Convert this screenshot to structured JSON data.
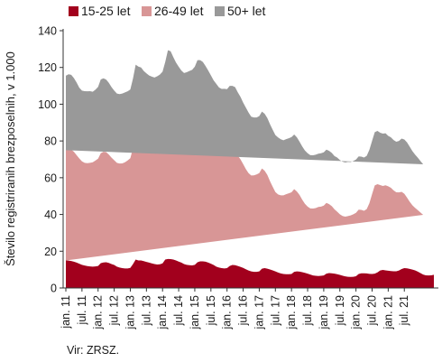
{
  "chart_data": {
    "type": "area",
    "stacked": true,
    "ylabel": "Število registriranih brezposelnih, v 1.000",
    "ylim": [
      0,
      140
    ],
    "yticks": [
      0,
      20,
      40,
      60,
      80,
      100,
      120,
      140
    ],
    "x_tick_labels": [
      "jan. 11",
      "jul. 11",
      "jan. 12",
      "jul. 12",
      "jan. 13",
      "jul. 13",
      "jan. 14",
      "jul. 14",
      "jan. 15",
      "jul. 15",
      "jan. 16",
      "jul. 16",
      "jan. 17",
      "jul. 17",
      "jan. 18",
      "jul. 18",
      "jan. 19",
      "jul. 19",
      "jan. 20",
      "jul. 20",
      "jan. 21",
      "jul. 21"
    ],
    "legend_position": "top-left",
    "series": [
      {
        "name": "15-25 let",
        "color": "#a2001d",
        "values": [
          15.0,
          14.9,
          14.7,
          14.3,
          13.8,
          13.2,
          12.6,
          12.2,
          11.9,
          11.7,
          11.6,
          11.7,
          12.0,
          13.5,
          13.9,
          14.0,
          13.6,
          13.0,
          12.5,
          11.6,
          11.1,
          10.8,
          10.6,
          10.6,
          10.9,
          13.0,
          15.5,
          15.0,
          15.0,
          14.6,
          14.2,
          13.8,
          13.4,
          13.0,
          12.8,
          12.9,
          13.4,
          15.5,
          15.8,
          15.7,
          15.5,
          15.0,
          14.4,
          13.8,
          13.0,
          12.6,
          12.4,
          12.3,
          12.6,
          14.0,
          14.5,
          14.5,
          14.3,
          13.8,
          13.2,
          12.5,
          11.6,
          11.1,
          10.8,
          10.6,
          10.8,
          12.0,
          12.5,
          12.4,
          12.0,
          11.5,
          10.9,
          10.2,
          9.5,
          9.0,
          8.8,
          8.8,
          9.0,
          10.5,
          10.8,
          10.5,
          10.1,
          9.6,
          9.0,
          8.4,
          7.9,
          7.6,
          7.5,
          7.5,
          7.6,
          8.8,
          9.0,
          8.9,
          8.6,
          8.2,
          7.8,
          7.3,
          6.8,
          6.6,
          6.5,
          6.6,
          6.8,
          7.8,
          8.1,
          8.0,
          7.8,
          7.5,
          7.1,
          6.7,
          6.3,
          6.1,
          6.0,
          6.1,
          6.4,
          7.6,
          8.0,
          8.0,
          7.9,
          7.7,
          7.6,
          7.8,
          8.5,
          9.5,
          9.8,
          9.6,
          9.4,
          9.2,
          9.1,
          9.1,
          9.5,
          10.3,
          10.8,
          10.7,
          10.4,
          10.0,
          9.6,
          8.9,
          8.1,
          7.3,
          6.9,
          6.8,
          6.9,
          7.2
        ]
      },
      {
        "name": "26-49 let",
        "color": "#d89696",
        "values": [
          60.0,
          60.8,
          60.6,
          59.8,
          58.5,
          57.3,
          56.3,
          55.9,
          56.0,
          56.4,
          56.8,
          57.6,
          58.4,
          59.8,
          60.2,
          59.9,
          59.0,
          57.9,
          57.0,
          56.5,
          56.6,
          57.0,
          57.8,
          58.8,
          59.7,
          63.0,
          67.5,
          67.0,
          66.0,
          64.5,
          63.5,
          62.8,
          62.6,
          63.0,
          63.9,
          64.7,
          65.8,
          69.0,
          75.0,
          74.5,
          71.6,
          69.2,
          67.5,
          66.0,
          66.0,
          66.8,
          67.8,
          68.7,
          70.0,
          72.5,
          72.0,
          71.0,
          69.0,
          67.0,
          65.5,
          64.0,
          63.0,
          62.5,
          62.5,
          62.6,
          62.4,
          63.0,
          62.5,
          62.0,
          60.0,
          58.5,
          56.5,
          54.5,
          53.0,
          52.2,
          52.5,
          53.0,
          53.5,
          54.5,
          53.0,
          51.0,
          48.0,
          45.5,
          43.2,
          42.5,
          42.5,
          42.8,
          43.5,
          44.0,
          44.5,
          45.0,
          43.5,
          41.7,
          39.4,
          37.6,
          36.5,
          36.0,
          36.4,
          36.9,
          37.6,
          37.7,
          38.0,
          38.5,
          37.5,
          36.5,
          35.0,
          34.0,
          33.0,
          32.5,
          32.5,
          33.0,
          33.5,
          34.0,
          34.5,
          35.0,
          34.5,
          34.0,
          35.0,
          38.5,
          43.5,
          48.0,
          48.0,
          46.5,
          45.7,
          46.3,
          45.9,
          45.3,
          44.0,
          43.0,
          42.5,
          42.0,
          40.5,
          38.5,
          36.5,
          35.0,
          34.0,
          33.5,
          33.0,
          32.5
        ]
      },
      {
        "name": "50+ let",
        "color": "#999999",
        "values": [
          40.5,
          40.6,
          40.7,
          40.1,
          39.5,
          38.5,
          38.5,
          39.0,
          39.1,
          39.0,
          38.4,
          38.6,
          39.0,
          40.2,
          40.0,
          39.5,
          39.0,
          38.4,
          37.9,
          37.7,
          37.8,
          38.0,
          38.0,
          37.6,
          37.4,
          38.0,
          38.5,
          38.5,
          39.0,
          39.0,
          39.1,
          39.0,
          39.0,
          38.5,
          38.5,
          38.5,
          38.5,
          38.5,
          38.6,
          38.6,
          38.5,
          38.5,
          38.5,
          38.5,
          38.0,
          38.0,
          37.9,
          37.7,
          37.8,
          37.5,
          37.5,
          37.5,
          37.5,
          37.5,
          37.0,
          36.5,
          36.5,
          35.5,
          35.0,
          35.2,
          35.0,
          35.0,
          35.0,
          34.9,
          34.5,
          34.0,
          33.5,
          33.5,
          33.0,
          32.0,
          31.5,
          31.0,
          31.0,
          31.0,
          31.0,
          31.0,
          31.0,
          31.0,
          31.0,
          31.0,
          30.5,
          30.0,
          30.0,
          30.0,
          30.0,
          29.7,
          29.5,
          29.0,
          29.0,
          29.0,
          29.0,
          29.0,
          29.0,
          29.0,
          29.0,
          29.0,
          29.0,
          29.0,
          29.0,
          29.0,
          29.0,
          29.5,
          29.5,
          29.5,
          29.5,
          29.5,
          29.0,
          29.0,
          29.0,
          29.0,
          29.0,
          29.0,
          29.0,
          29.0,
          29.0,
          29.0,
          29.0,
          28.5,
          28.5,
          28.3,
          27.5,
          27.5,
          27.4,
          27.5,
          28.0,
          29.0,
          29.5,
          30.0,
          30.0,
          29.5,
          29.0,
          28.5,
          28.0,
          27.5,
          27.0,
          26.5
        ]
      }
    ]
  },
  "source_note": "Vir: ZRSZ."
}
